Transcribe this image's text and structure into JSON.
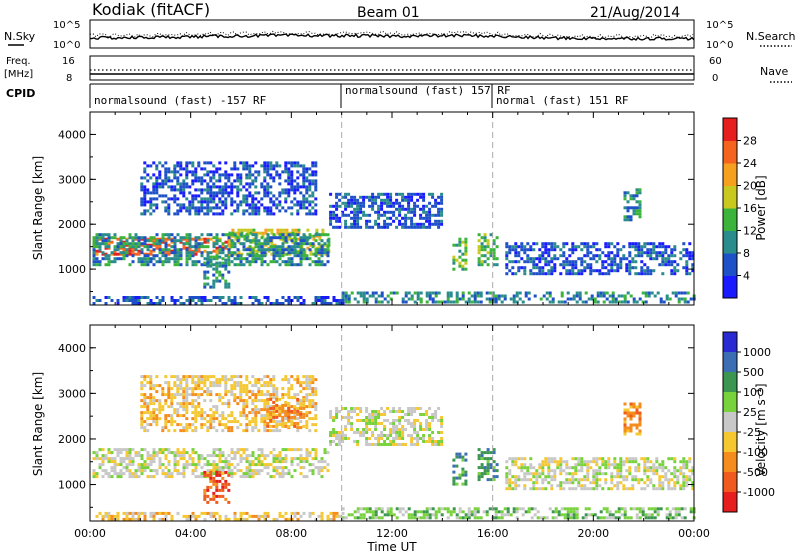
{
  "header": {
    "station": "Kodiak (fitACF)",
    "beam": "Beam 01",
    "date": "21/Aug/2014"
  },
  "top_panels": {
    "nsky_label": "N.Sky",
    "nsearch_label": "N.Search",
    "left_ticks": [
      "10^5",
      "10^0"
    ],
    "right_ticks": [
      "10^5",
      "10^0"
    ],
    "freq_label_line1": "Freq.",
    "freq_label_line2": "[MHz]",
    "freq_ticks": [
      "16",
      "8"
    ],
    "nave_label": "Nave",
    "nave_ticks": [
      "60",
      "0"
    ],
    "cpid_label": "CPID",
    "cpid_segments": [
      {
        "label": "normalsound (fast) -157 RF",
        "start_hour": 0
      },
      {
        "label": "normalsound (fast) 157 RF",
        "start_hour": 10
      },
      {
        "label": "normal (fast) 151 RF",
        "start_hour": 16
      }
    ]
  },
  "chart_data": [
    {
      "type": "heatmap",
      "title": "",
      "ylabel": "Slant Range [km]",
      "xlabel": "",
      "ylim": [
        200,
        4500
      ],
      "xlim": [
        0,
        24
      ],
      "yticks": [
        "1000",
        "2000",
        "3000",
        "4000"
      ],
      "colorbar_label": "Power [dB]",
      "colorbar_ticks": [
        "4",
        "8",
        "12",
        "16",
        "20",
        "24",
        "28"
      ],
      "colorbar_colors": [
        "#1a1aff",
        "#1e50c8",
        "#2a8c8c",
        "#3cb43c",
        "#c8c81e",
        "#f5a01e",
        "#f5641e",
        "#e61e1e"
      ],
      "regions": [
        {
          "x0": 0.1,
          "x1": 5.5,
          "y0": 1300,
          "y1": 1700,
          "level": 6
        },
        {
          "x0": 5.5,
          "x1": 9.5,
          "y0": 1300,
          "y1": 1900,
          "level": 4
        },
        {
          "x0": 0.1,
          "x1": 9.5,
          "y0": 1100,
          "y1": 1800,
          "level": 2
        },
        {
          "x0": 9.5,
          "x1": 14.0,
          "y0": 1900,
          "y1": 2700,
          "level": 1
        },
        {
          "x0": 2.0,
          "x1": 9.0,
          "y0": 2200,
          "y1": 3400,
          "level": 1
        },
        {
          "x0": 4.5,
          "x1": 5.5,
          "y0": 600,
          "y1": 1300,
          "level": 2
        },
        {
          "x0": 14.4,
          "x1": 14.9,
          "y0": 1000,
          "y1": 1700,
          "level": 3
        },
        {
          "x0": 15.4,
          "x1": 16.2,
          "y0": 1100,
          "y1": 1800,
          "level": 3
        },
        {
          "x0": 16.5,
          "x1": 24.0,
          "y0": 900,
          "y1": 1600,
          "level": 1
        },
        {
          "x0": 21.2,
          "x1": 21.8,
          "y0": 2100,
          "y1": 2800,
          "level": 2
        },
        {
          "x0": 10.0,
          "x1": 24.0,
          "y0": 250,
          "y1": 500,
          "level": 2
        },
        {
          "x0": 0.1,
          "x1": 10.0,
          "y0": 250,
          "y1": 400,
          "level": 1
        }
      ]
    },
    {
      "type": "heatmap",
      "title": "",
      "ylabel": "Slant Range [km]",
      "xlabel": "Time UT",
      "ylim": [
        200,
        4500
      ],
      "xlim": [
        0,
        24
      ],
      "yticks": [
        "1000",
        "2000",
        "3000",
        "4000"
      ],
      "xticks": [
        "00:00",
        "04:00",
        "08:00",
        "12:00",
        "16:00",
        "20:00",
        "00:00"
      ],
      "colorbar_label": "Velocity [m s⁻¹]",
      "colorbar_ticks": [
        "1000",
        "500",
        "100",
        "25",
        "-25",
        "-100",
        "-500",
        "-1000"
      ],
      "colorbar_colors": [
        "#2a2ad2",
        "#3c6eb4",
        "#3c9650",
        "#78d23c",
        "#c8c8c8",
        "#f5c832",
        "#f58c1e",
        "#f05a1e",
        "#e61e1e"
      ],
      "regions": [
        {
          "x0": 0.1,
          "x1": 9.5,
          "y0": 1200,
          "y1": 1800,
          "level": 4
        },
        {
          "x0": 9.5,
          "x1": 14.0,
          "y0": 1900,
          "y1": 2700,
          "level": 4
        },
        {
          "x0": 2.0,
          "x1": 9.0,
          "y0": 2200,
          "y1": 3400,
          "level": 5
        },
        {
          "x0": 7.0,
          "x1": 8.5,
          "y0": 2300,
          "y1": 2900,
          "level": 6
        },
        {
          "x0": 4.5,
          "x1": 5.5,
          "y0": 600,
          "y1": 1300,
          "level": 7
        },
        {
          "x0": 14.4,
          "x1": 14.9,
          "y0": 1000,
          "y1": 1700,
          "level": 2
        },
        {
          "x0": 15.4,
          "x1": 16.2,
          "y0": 1100,
          "y1": 1800,
          "level": 2
        },
        {
          "x0": 16.5,
          "x1": 24.0,
          "y0": 900,
          "y1": 1600,
          "level": 4
        },
        {
          "x0": 21.2,
          "x1": 21.8,
          "y0": 2100,
          "y1": 2800,
          "level": 6
        },
        {
          "x0": 10.0,
          "x1": 24.0,
          "y0": 250,
          "y1": 500,
          "level": 3
        },
        {
          "x0": 0.1,
          "x1": 10.0,
          "y0": 250,
          "y1": 400,
          "level": 5
        }
      ]
    }
  ]
}
